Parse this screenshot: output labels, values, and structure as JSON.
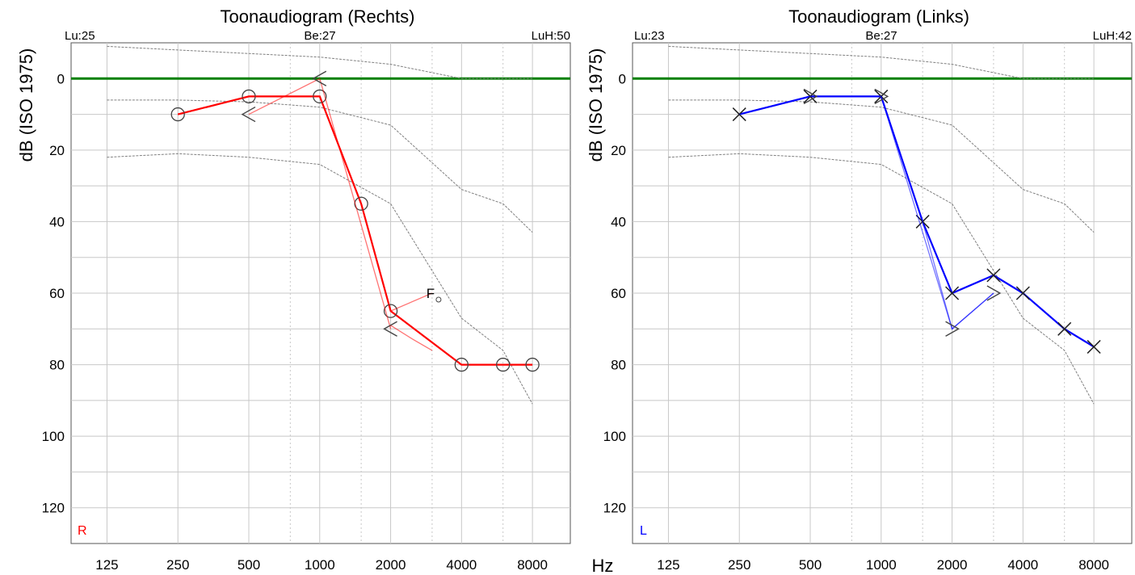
{
  "hz_label": "Hz",
  "chart_data": [
    {
      "type": "line",
      "title": "Toonaudiogram (Rechts)",
      "ylabel": "dB (ISO 1975)",
      "xlabel": "Hz",
      "ear_label": "R",
      "corner_left": "Lu:25",
      "corner_mid": "Be:27",
      "corner_right": "LuH:50",
      "color": "#ff0000",
      "x_scale": "log2",
      "categories": [
        "125",
        "250",
        "500",
        "1000",
        "2000",
        "4000",
        "8000"
      ],
      "xlim": [
        88,
        11585
      ],
      "y_ticks": [
        "0",
        "20",
        "40",
        "60",
        "80",
        "100",
        "120"
      ],
      "ylim": [
        -10,
        130
      ],
      "y_reversed": true,
      "grid": true,
      "reference_lines": [
        {
          "name": "",
          "color": "#008000",
          "x": [
            88,
            11585
          ],
          "y": [
            0,
            0
          ]
        },
        {
          "name": "",
          "color": "#808080",
          "x": [
            125,
            250,
            500,
            1000,
            2000,
            4000,
            8000
          ],
          "y": [
            -9,
            -8,
            -7,
            -6,
            -4,
            0,
            0
          ]
        },
        {
          "name": "",
          "color": "#808080",
          "x": [
            125,
            250,
            500,
            1000,
            2000,
            4000,
            6000,
            8000
          ],
          "y": [
            6,
            6,
            6.5,
            8,
            13,
            31,
            35,
            43
          ]
        },
        {
          "name": "",
          "color": "#808080",
          "x": [
            125,
            250,
            500,
            1000,
            2000,
            4000,
            6000,
            8000
          ],
          "y": [
            22,
            21,
            22,
            24,
            35,
            67,
            76,
            91
          ]
        }
      ],
      "series": [
        {
          "name": "",
          "symbol": "circle",
          "x": [
            250,
            500,
            1000,
            1500,
            2000,
            4000,
            6000,
            8000
          ],
          "y": [
            10,
            5,
            5,
            35,
            65,
            80,
            80,
            80
          ]
        },
        {
          "name": "",
          "symbol": "none",
          "x": [
            250,
            500,
            1000,
            1500,
            2000
          ],
          "y": [
            10,
            5,
            5,
            35,
            65
          ]
        },
        {
          "name": "",
          "symbol": "bracket-left",
          "x": [
            500,
            1000,
            2000
          ],
          "y": [
            10,
            0,
            70
          ]
        },
        {
          "name": "",
          "symbol": "none",
          "x": [
            2000,
            3000
          ],
          "y": [
            65,
            60
          ]
        },
        {
          "name": "",
          "symbol": "none",
          "x": [
            2000,
            2500,
            3000
          ],
          "y": [
            69,
            73,
            76
          ]
        }
      ],
      "marker_labels": [
        {
          "text": "F",
          "x": 3000,
          "y": 60
        }
      ]
    },
    {
      "type": "line",
      "title": "Toonaudiogram (Links)",
      "ylabel": "dB (ISO 1975)",
      "xlabel": "Hz",
      "ear_label": "L",
      "corner_left": "Lu:23",
      "corner_mid": "Be:27",
      "corner_right": "LuH:42",
      "color": "#0000ff",
      "x_scale": "log2",
      "categories": [
        "125",
        "250",
        "500",
        "1000",
        "2000",
        "4000",
        "8000"
      ],
      "xlim": [
        88,
        11585
      ],
      "y_ticks": [
        "0",
        "20",
        "40",
        "60",
        "80",
        "100",
        "120"
      ],
      "ylim": [
        -10,
        130
      ],
      "y_reversed": true,
      "grid": true,
      "reference_lines": [
        {
          "name": "",
          "color": "#008000",
          "x": [
            88,
            11585
          ],
          "y": [
            0,
            0
          ]
        },
        {
          "name": "",
          "color": "#808080",
          "x": [
            125,
            250,
            500,
            1000,
            2000,
            4000,
            8000
          ],
          "y": [
            -9,
            -8,
            -7,
            -6,
            -4,
            0,
            0
          ]
        },
        {
          "name": "",
          "color": "#808080",
          "x": [
            125,
            250,
            500,
            1000,
            2000,
            4000,
            6000,
            8000
          ],
          "y": [
            6,
            6,
            6.5,
            8,
            13,
            31,
            35,
            43
          ]
        },
        {
          "name": "",
          "color": "#808080",
          "x": [
            125,
            250,
            500,
            1000,
            2000,
            4000,
            6000,
            8000
          ],
          "y": [
            22,
            21,
            22,
            24,
            35,
            67,
            76,
            91
          ]
        }
      ],
      "series": [
        {
          "name": "",
          "symbol": "cross",
          "x": [
            250,
            500,
            1000,
            1500,
            2000,
            3000,
            4000,
            6000,
            8000
          ],
          "y": [
            10,
            5,
            5,
            40,
            60,
            55,
            60,
            70,
            75
          ]
        },
        {
          "name": "",
          "symbol": "none",
          "x": [
            250,
            500,
            1000,
            1500,
            2000,
            3000
          ],
          "y": [
            10,
            5,
            5,
            40,
            70,
            60
          ]
        },
        {
          "name": "",
          "symbol": "bracket-right",
          "x": [
            500,
            1000,
            2000,
            3000
          ],
          "y": [
            5,
            5,
            70,
            60
          ]
        }
      ],
      "marker_labels": []
    }
  ]
}
